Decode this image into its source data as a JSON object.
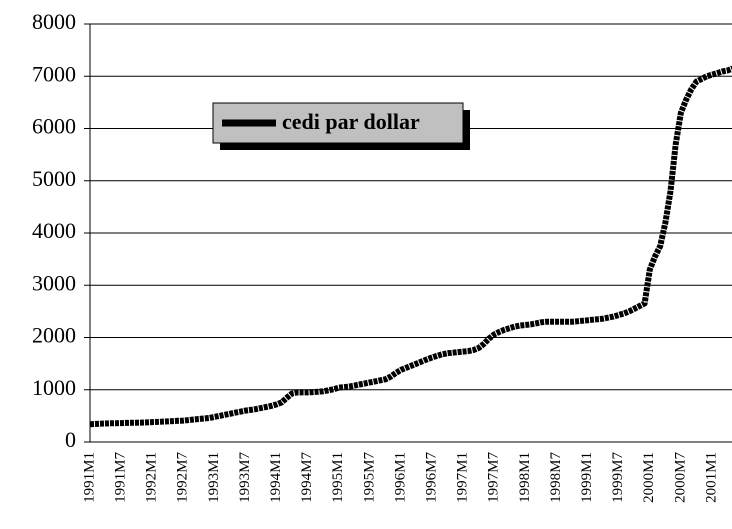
{
  "chart_data": {
    "type": "line",
    "categories": [
      "1991M1",
      null,
      null,
      null,
      null,
      null,
      "1991M7",
      null,
      null,
      null,
      null,
      null,
      "1992M1",
      null,
      null,
      null,
      null,
      null,
      "1992M7",
      null,
      null,
      null,
      null,
      null,
      "1993M1",
      null,
      null,
      null,
      null,
      null,
      "1993M7",
      null,
      null,
      null,
      null,
      null,
      "1994M1",
      null,
      null,
      null,
      null,
      null,
      "1994M7",
      null,
      null,
      null,
      null,
      null,
      "1995M1",
      null,
      null,
      null,
      null,
      null,
      "1995M7",
      null,
      null,
      null,
      null,
      null,
      "1996M1",
      null,
      null,
      null,
      null,
      null,
      "1996M7",
      null,
      null,
      null,
      null,
      null,
      "1997M1",
      null,
      null,
      null,
      null,
      null,
      "1997M7",
      null,
      null,
      null,
      null,
      null,
      "1998M1",
      null,
      null,
      null,
      null,
      null,
      "1998M7",
      null,
      null,
      null,
      null,
      null,
      "1999M1",
      null,
      null,
      null,
      null,
      null,
      "1999M7",
      null,
      null,
      null,
      null,
      null,
      "2000M1",
      null,
      null,
      null,
      null,
      null,
      "2000M7",
      null,
      null,
      null,
      null,
      null,
      "2001M1",
      null,
      null,
      null,
      null
    ],
    "series": [
      {
        "name": "cedi par dollar",
        "color": "#000000",
        "values": [
          340,
          345,
          350,
          355,
          358,
          360,
          362,
          365,
          368,
          370,
          372,
          375,
          380,
          385,
          390,
          395,
          400,
          405,
          410,
          420,
          430,
          440,
          450,
          460,
          480,
          500,
          520,
          540,
          560,
          580,
          600,
          615,
          630,
          650,
          670,
          690,
          720,
          760,
          850,
          930,
          950,
          950,
          950,
          955,
          960,
          970,
          990,
          1010,
          1040,
          1050,
          1060,
          1080,
          1100,
          1120,
          1140,
          1160,
          1180,
          1200,
          1250,
          1320,
          1380,
          1420,
          1460,
          1500,
          1540,
          1580,
          1620,
          1650,
          1680,
          1700,
          1710,
          1720,
          1730,
          1740,
          1760,
          1800,
          1880,
          1980,
          2060,
          2110,
          2150,
          2180,
          2210,
          2230,
          2240,
          2250,
          2270,
          2290,
          2300,
          2300,
          2300,
          2300,
          2300,
          2300,
          2310,
          2320,
          2330,
          2340,
          2350,
          2360,
          2380,
          2400,
          2430,
          2460,
          2500,
          2550,
          2600,
          2650,
          3300,
          3550,
          3750,
          4200,
          4800,
          5700,
          6300,
          6550,
          6750,
          6900,
          6950,
          7000,
          7030,
          7060,
          7090,
          7110,
          7150
        ]
      }
    ],
    "ylim": [
      0,
      8000
    ],
    "yticks": [
      0,
      1000,
      2000,
      3000,
      4000,
      5000,
      6000,
      7000,
      8000
    ],
    "grid": true
  }
}
